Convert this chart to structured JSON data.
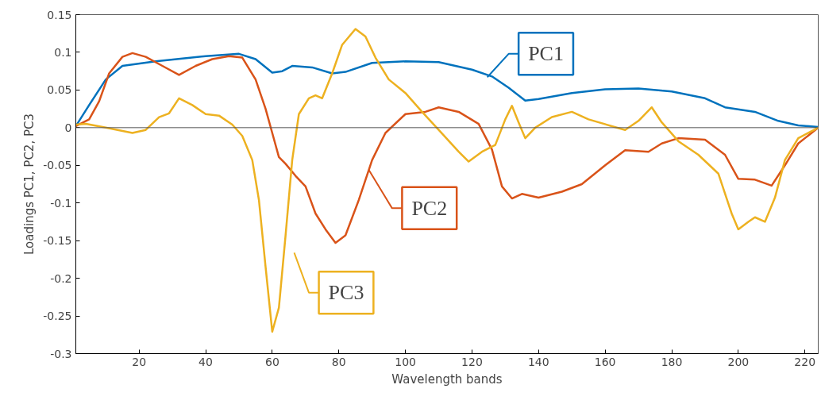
{
  "chart_data": {
    "type": "line",
    "xlabel": "Wavelength bands",
    "ylabel": "Loadings PC1, PC2, PC3",
    "xlim": [
      1,
      224
    ],
    "ylim": [
      -0.3,
      0.15
    ],
    "xticks": [
      20,
      40,
      60,
      80,
      100,
      120,
      140,
      160,
      180,
      200,
      220
    ],
    "yticks": [
      {
        "value": -0.3,
        "label": "-0.3"
      },
      {
        "value": -0.25,
        "label": "-0.25"
      },
      {
        "value": -0.2,
        "label": "-0.2"
      },
      {
        "value": -0.15,
        "label": "-0.15"
      },
      {
        "value": -0.1,
        "label": "-0.1"
      },
      {
        "value": -0.05,
        "label": "-0.05"
      },
      {
        "value": 0,
        "label": "0"
      },
      {
        "value": 0.05,
        "label": "0.05"
      },
      {
        "value": 0.1,
        "label": "0.1"
      },
      {
        "value": 0.15,
        "label": "0.15"
      }
    ],
    "ref_lines": [
      {
        "axis": "y",
        "value": 0,
        "color": "#555555"
      }
    ],
    "marker": "none",
    "line_style": "solid",
    "series": [
      {
        "name": "PC1",
        "color": "#0072bd",
        "x": [
          1,
          5,
          10,
          15,
          25,
          40,
          50,
          55,
          60,
          63,
          66,
          72,
          78,
          82,
          90,
          100,
          110,
          120,
          126,
          131,
          136,
          140,
          150,
          160,
          170,
          180,
          190,
          196,
          205,
          212,
          218,
          224
        ],
        "values": [
          0.002,
          0.03,
          0.064,
          0.082,
          0.088,
          0.095,
          0.098,
          0.091,
          0.073,
          0.075,
          0.082,
          0.08,
          0.072,
          0.074,
          0.086,
          0.088,
          0.087,
          0.077,
          0.068,
          0.053,
          0.036,
          0.038,
          0.046,
          0.051,
          0.052,
          0.048,
          0.039,
          0.027,
          0.021,
          0.009,
          0.003,
          0.001
        ]
      },
      {
        "name": "PC2",
        "color": "#d95319",
        "x": [
          1,
          5,
          8,
          11,
          15,
          18,
          22,
          27,
          32,
          37,
          42,
          47,
          51,
          55,
          58,
          60,
          62,
          64,
          67,
          70,
          73,
          76,
          79,
          82,
          86,
          90,
          94,
          100,
          106,
          110,
          116,
          122,
          126,
          129,
          132,
          135,
          140,
          147,
          153,
          160,
          166,
          173,
          177,
          182,
          190,
          196,
          200,
          205,
          210,
          214,
          218,
          224
        ],
        "values": [
          0.002,
          0.011,
          0.035,
          0.072,
          0.094,
          0.099,
          0.094,
          0.082,
          0.07,
          0.082,
          0.091,
          0.095,
          0.093,
          0.064,
          0.025,
          -0.007,
          -0.039,
          -0.048,
          -0.064,
          -0.078,
          -0.114,
          -0.135,
          -0.153,
          -0.143,
          -0.096,
          -0.043,
          -0.007,
          0.018,
          0.021,
          0.027,
          0.021,
          0.005,
          -0.029,
          -0.078,
          -0.094,
          -0.088,
          -0.093,
          -0.085,
          -0.075,
          -0.05,
          -0.03,
          -0.032,
          -0.021,
          -0.014,
          -0.016,
          -0.036,
          -0.068,
          -0.069,
          -0.077,
          -0.05,
          -0.021,
          0
        ]
      },
      {
        "name": "PC3",
        "color": "#edb120",
        "x": [
          1,
          4,
          10,
          18,
          22,
          26,
          29,
          32,
          36,
          40,
          44,
          48,
          51,
          54,
          56,
          58,
          60,
          62,
          64,
          66,
          68,
          71,
          73,
          75,
          78,
          81,
          85,
          88,
          91,
          95,
          100,
          105,
          110,
          116,
          119,
          123,
          127,
          130,
          132,
          134,
          136,
          139,
          144,
          150,
          155,
          162,
          166,
          170,
          174,
          177,
          182,
          188,
          194,
          198,
          200,
          203,
          205,
          208,
          211,
          214,
          218,
          224
        ],
        "values": [
          0.004,
          0.005,
          0,
          -0.007,
          -0.003,
          0.014,
          0.019,
          0.039,
          0.03,
          0.018,
          0.016,
          0.004,
          -0.011,
          -0.043,
          -0.096,
          -0.185,
          -0.271,
          -0.239,
          -0.143,
          -0.043,
          0.018,
          0.039,
          0.043,
          0.039,
          0.072,
          0.11,
          0.131,
          0.121,
          0.093,
          0.064,
          0.046,
          0.021,
          -0.003,
          -0.032,
          -0.045,
          -0.032,
          -0.023,
          0.011,
          0.029,
          0.007,
          -0.014,
          0,
          0.014,
          0.021,
          0.011,
          0.002,
          -0.003,
          0.009,
          0.027,
          0.007,
          -0.018,
          -0.036,
          -0.061,
          -0.114,
          -0.135,
          -0.125,
          -0.119,
          -0.125,
          -0.093,
          -0.043,
          -0.014,
          0
        ]
      }
    ]
  }
}
